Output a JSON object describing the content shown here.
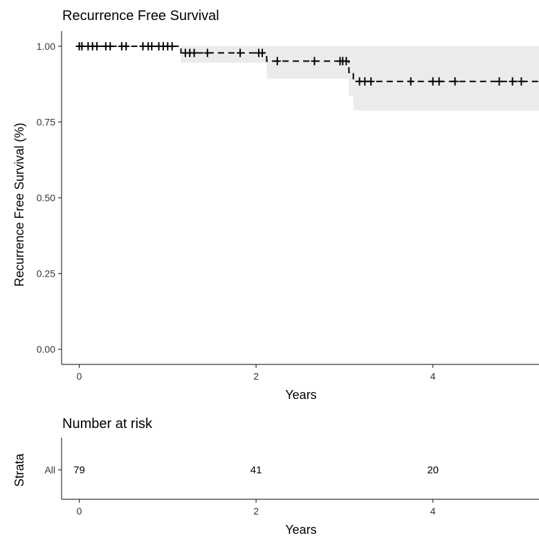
{
  "chart_data": [
    {
      "type": "line",
      "subtype": "kaplan-meier-step",
      "title": "Recurrence Free Survival",
      "xlabel": "Years",
      "ylabel": "Recurrence Free Survival (%)",
      "xlim": [
        -0.2,
        5.2
      ],
      "ylim": [
        -0.05,
        1.05
      ],
      "xticks": [
        0,
        2,
        4
      ],
      "xtick_labels": [
        "0",
        "2",
        "4"
      ],
      "yticks": [
        0.0,
        0.25,
        0.5,
        0.75,
        1.0
      ],
      "ytick_labels": [
        "0.00",
        "0.25",
        "0.50",
        "0.75",
        "1.00"
      ],
      "grid": false,
      "line_style": "dashed",
      "series": [
        {
          "step_x": [
            0,
            1.15,
            2.12,
            3.05,
            3.1,
            5.2
          ],
          "step_y": [
            1.0,
            0.978,
            0.951,
            0.914,
            0.884,
            0.884
          ],
          "ci_lower": [
            1.0,
            0.946,
            0.893,
            0.837,
            0.788,
            0.788
          ],
          "ci_upper": [
            1.0,
            1.0,
            1.0,
            1.0,
            1.0,
            1.0
          ],
          "censor_x": [
            0.0,
            0.03,
            0.1,
            0.15,
            0.2,
            0.3,
            0.35,
            0.48,
            0.53,
            0.72,
            0.78,
            0.82,
            0.9,
            0.95,
            1.0,
            1.05,
            1.2,
            1.25,
            1.3,
            1.45,
            1.82,
            2.03,
            2.07,
            2.24,
            2.66,
            2.95,
            2.98,
            3.02,
            3.17,
            3.23,
            3.3,
            3.75,
            4.0,
            4.07,
            4.25,
            4.75,
            4.9,
            5.0
          ]
        }
      ]
    },
    {
      "type": "table",
      "title": "Number at risk",
      "xlabel": "Years",
      "ylabel": "Strata",
      "xticks": [
        0,
        2,
        4
      ],
      "xtick_labels": [
        "0",
        "2",
        "4"
      ],
      "strata": [
        "All"
      ],
      "times": [
        0,
        2,
        4
      ],
      "values": [
        79,
        41,
        20
      ]
    }
  ]
}
